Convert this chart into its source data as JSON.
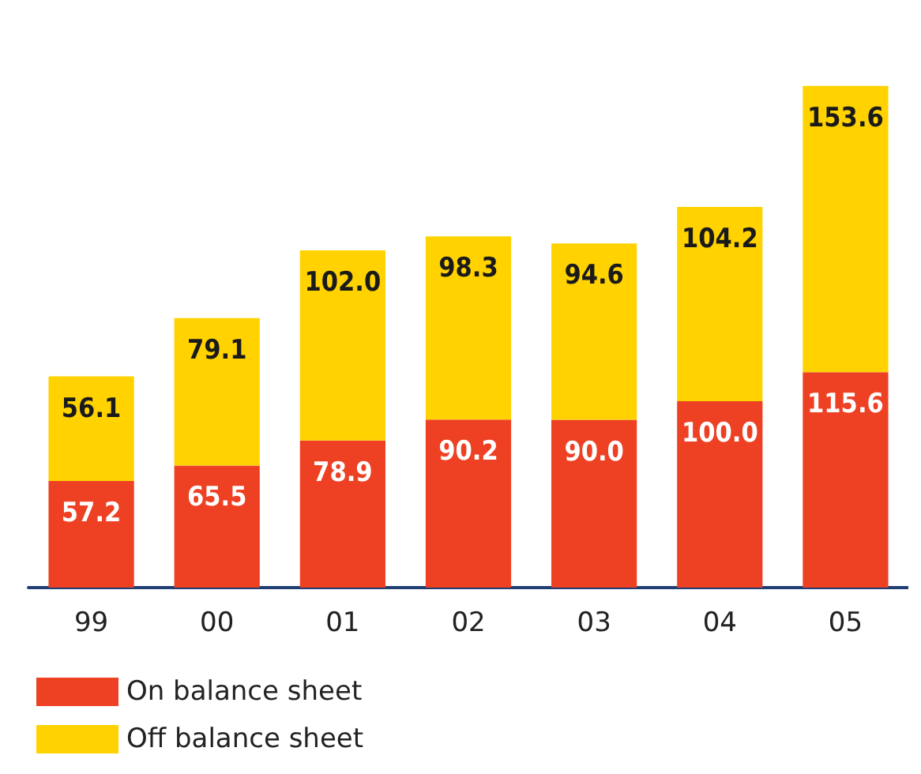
{
  "chart_data": {
    "type": "bar",
    "stacked": true,
    "legend": "bottom left",
    "grid": false,
    "categories": [
      "99",
      "00",
      "01",
      "02",
      "03",
      "04",
      "05"
    ],
    "series": [
      {
        "name": "On balance sheet",
        "color": "#ee4023",
        "values": [
          57.2,
          65.5,
          78.9,
          90.2,
          90.0,
          100.0,
          115.6
        ],
        "value_labels": [
          "57.2",
          "65.5",
          "78.9",
          "90.2",
          "90.0",
          "100.0",
          "115.6"
        ]
      },
      {
        "name": "Off balance sheet",
        "color": "#ffd200",
        "values": [
          56.1,
          79.1,
          102.0,
          98.3,
          94.6,
          104.2,
          153.6
        ],
        "value_labels": [
          "56.1",
          "79.1",
          "102.0",
          "98.3",
          "94.6",
          "104.2",
          "153.6"
        ]
      }
    ]
  }
}
